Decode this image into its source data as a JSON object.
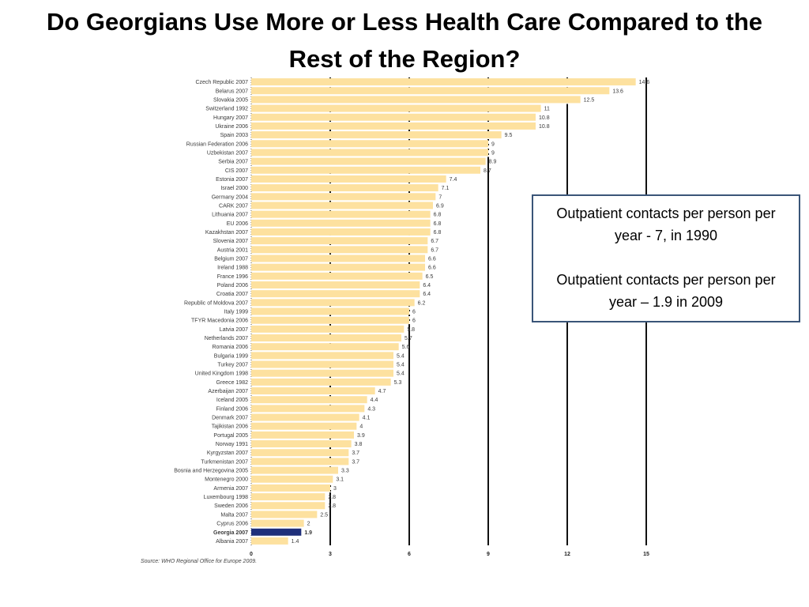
{
  "slide": {
    "title": "Do Georgians Use More or Less Health Care Compared to the Rest of the Region?"
  },
  "callout": {
    "line1": "Outpatient contacts per person per year  - 7, in 1990",
    "line2": "Outpatient contacts per person per year – 1.9 in 2009"
  },
  "chart_data": {
    "type": "bar",
    "orientation": "horizontal",
    "title": "",
    "xlabel": "",
    "ylabel": "",
    "xlim": [
      0,
      15
    ],
    "xticks": [
      0,
      3,
      6,
      9,
      12,
      15
    ],
    "source": "Source: WHO Regional Office for Europe 2009.",
    "colors": {
      "bar": "#fde19f",
      "highlight": "#1f2f7a"
    },
    "highlight_category": "Georgia 2007",
    "categories": [
      "Czech Republic 2007",
      "Belarus 2007",
      "Slovakia 2005",
      "Switzerland 1992",
      "Hungary 2007",
      "Ukraine 2006",
      "Spain 2003",
      "Russian Federation 2006",
      "Uzbekistan 2007",
      "Serbia 2007",
      "CIS 2007",
      "Estonia 2007",
      "Israel 2000",
      "Germany 2004",
      "CARK 2007",
      "Lithuania 2007",
      "EU 2006",
      "Kazakhstan 2007",
      "Slovenia 2007",
      "Austria 2001",
      "Belgium 2007",
      "Ireland 1988",
      "France 1996",
      "Poland 2006",
      "Croatia 2007",
      "Republic of Moldova 2007",
      "Italy 1999",
      "TFYR Macedonia 2006",
      "Latvia 2007",
      "Netherlands 2007",
      "Romania 2006",
      "Bulgaria 1999",
      "Turkey 2007",
      "United Kingdom 1998",
      "Greece 1982",
      "Azerbaijan 2007",
      "Iceland 2005",
      "Finland 2006",
      "Denmark 2007",
      "Tajikistan 2006",
      "Portugal 2005",
      "Norway 1991",
      "Kyrgyzstan 2007",
      "Turkmenistan 2007",
      "Bosnia and Herzegovina 2005",
      "Montenegro 2000",
      "Armenia 2007",
      "Luxembourg 1998",
      "Sweden 2006",
      "Malta 2007",
      "Cyprus 2006",
      "Georgia 2007",
      "Albania 2007"
    ],
    "values": [
      14.6,
      13.6,
      12.5,
      11,
      10.8,
      10.8,
      9.5,
      9,
      9,
      8.9,
      8.7,
      7.4,
      7.1,
      7,
      6.9,
      6.8,
      6.8,
      6.8,
      6.7,
      6.7,
      6.6,
      6.6,
      6.5,
      6.4,
      6.4,
      6.2,
      6,
      6,
      5.8,
      5.7,
      5.6,
      5.4,
      5.4,
      5.4,
      5.3,
      4.7,
      4.4,
      4.3,
      4.1,
      4,
      3.9,
      3.8,
      3.7,
      3.7,
      3.3,
      3.1,
      3,
      2.8,
      2.8,
      2.5,
      2,
      1.9,
      1.4
    ]
  }
}
